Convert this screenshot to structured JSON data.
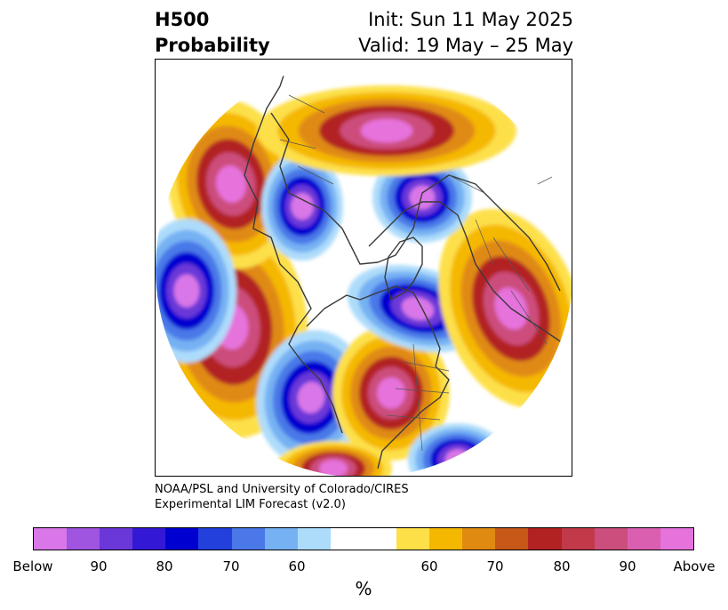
{
  "title": {
    "line1_left": "H500",
    "line2_left": "Probability",
    "line1_right": "Init: Sun 11 May 2025",
    "line2_right": "Valid: 19 May – 25 May"
  },
  "credit": {
    "line1": "NOAA/PSL and University of Colorado/CIRES",
    "line2": "Experimental LIM Forecast (v2.0)"
  },
  "colorbar": {
    "unit": "%",
    "colors": [
      "#d977e8",
      "#9f55e0",
      "#6a37d8",
      "#3319d6",
      "#0000d0",
      "#2340dc",
      "#4a78e8",
      "#76b1f3",
      "#addcfb",
      "#ffffff",
      "#ffffff",
      "#fde048",
      "#f5b800",
      "#e08a12",
      "#c75818",
      "#b22222",
      "#c23a4a",
      "#cc4e7c",
      "#db5fb0",
      "#e672dc"
    ],
    "labels": [
      "Below",
      "90",
      "80",
      "70",
      "60",
      "60",
      "70",
      "80",
      "90",
      "Above"
    ]
  },
  "map": {
    "anomalies": [
      {
        "kind": "positive",
        "level": "Above",
        "region": "North Pacific west"
      },
      {
        "kind": "positive",
        "level": "90",
        "region": "Gulf of Alaska"
      },
      {
        "kind": "negative",
        "level": "80",
        "region": "Bering Sea"
      },
      {
        "kind": "negative",
        "level": "90",
        "region": "East Asia"
      },
      {
        "kind": "positive",
        "level": "Above",
        "region": "North America east"
      },
      {
        "kind": "negative",
        "level": "90",
        "region": "Western US"
      },
      {
        "kind": "negative",
        "level": "90",
        "region": "Hudson Bay / Arctic"
      },
      {
        "kind": "positive",
        "level": "90",
        "region": "Europe"
      },
      {
        "kind": "negative",
        "level": "90",
        "region": "Barents Sea"
      },
      {
        "kind": "positive",
        "level": "80",
        "region": "North Atlantic"
      }
    ]
  }
}
